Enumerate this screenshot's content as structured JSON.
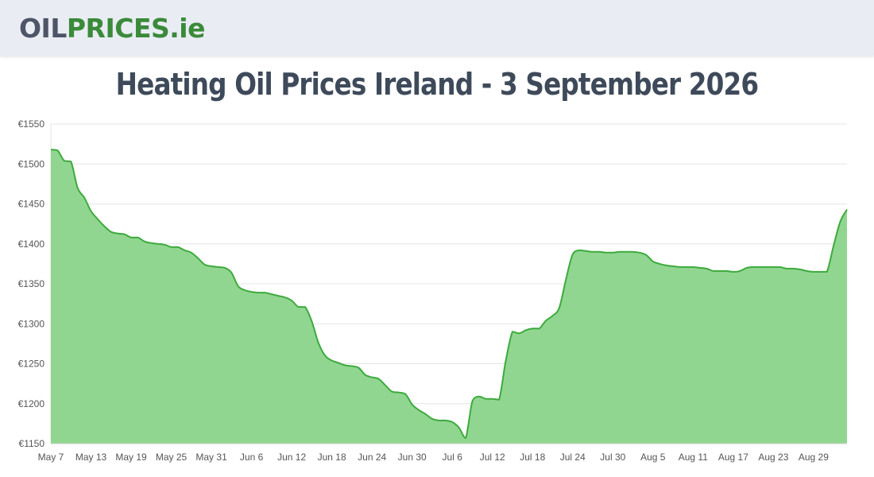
{
  "header": {
    "logo_part1": "OIL",
    "logo_part2": "PRICES",
    "logo_part3": ".ie",
    "logo_colors": {
      "dark": "#4d5566",
      "green": "#3a8a3a"
    }
  },
  "chart_data": {
    "type": "area",
    "title": "Heating Oil Prices Ireland - 3 September 2026",
    "xlabel": "",
    "ylabel": "",
    "ylim": [
      1150,
      1550
    ],
    "yticks": [
      "€1150",
      "€1200",
      "€1250",
      "€1300",
      "€1350",
      "€1400",
      "€1450",
      "€1500",
      "€1550"
    ],
    "ytick_values": [
      1150,
      1200,
      1250,
      1300,
      1350,
      1400,
      1450,
      1500,
      1550
    ],
    "xticks": [
      "May 7",
      "May 13",
      "May 19",
      "May 25",
      "May 31",
      "Jun 6",
      "Jun 12",
      "Jun 18",
      "Jun 24",
      "Jun 30",
      "Jul 6",
      "Jul 12",
      "Jul 18",
      "Jul 24",
      "Jul 30",
      "Aug 5",
      "Aug 11",
      "Aug 17",
      "Aug 23",
      "Aug 29"
    ],
    "xlim": [
      "May 7",
      "Sep 3"
    ],
    "grid": true,
    "line_color": "#3daa3d",
    "fill_color": "#90d690",
    "series": [
      {
        "values": [
          {
            "x": "May 7",
            "y": 1518
          },
          {
            "x": "May 8",
            "y": 1517
          },
          {
            "x": "May 9",
            "y": 1504
          },
          {
            "x": "May 10",
            "y": 1503
          },
          {
            "x": "May 11",
            "y": 1470
          },
          {
            "x": "May 12",
            "y": 1458
          },
          {
            "x": "May 13",
            "y": 1441
          },
          {
            "x": "May 14",
            "y": 1431
          },
          {
            "x": "May 15",
            "y": 1422
          },
          {
            "x": "May 16",
            "y": 1415
          },
          {
            "x": "May 17",
            "y": 1413
          },
          {
            "x": "May 18",
            "y": 1412
          },
          {
            "x": "May 19",
            "y": 1408
          },
          {
            "x": "May 20",
            "y": 1408
          },
          {
            "x": "May 21",
            "y": 1403
          },
          {
            "x": "May 22",
            "y": 1401
          },
          {
            "x": "May 23",
            "y": 1400
          },
          {
            "x": "May 24",
            "y": 1399
          },
          {
            "x": "May 25",
            "y": 1396
          },
          {
            "x": "May 26",
            "y": 1396
          },
          {
            "x": "May 27",
            "y": 1392
          },
          {
            "x": "May 28",
            "y": 1389
          },
          {
            "x": "May 29",
            "y": 1382
          },
          {
            "x": "May 30",
            "y": 1374
          },
          {
            "x": "May 31",
            "y": 1372
          },
          {
            "x": "Jun 1",
            "y": 1371
          },
          {
            "x": "Jun 2",
            "y": 1370
          },
          {
            "x": "Jun 3",
            "y": 1364
          },
          {
            "x": "Jun 4",
            "y": 1347
          },
          {
            "x": "Jun 5",
            "y": 1342
          },
          {
            "x": "Jun 6",
            "y": 1340
          },
          {
            "x": "Jun 7",
            "y": 1339
          },
          {
            "x": "Jun 8",
            "y": 1339
          },
          {
            "x": "Jun 9",
            "y": 1337
          },
          {
            "x": "Jun 10",
            "y": 1335
          },
          {
            "x": "Jun 11",
            "y": 1333
          },
          {
            "x": "Jun 12",
            "y": 1329
          },
          {
            "x": "Jun 13",
            "y": 1321
          },
          {
            "x": "Jun 14",
            "y": 1321
          },
          {
            "x": "Jun 15",
            "y": 1303
          },
          {
            "x": "Jun 16",
            "y": 1276
          },
          {
            "x": "Jun 17",
            "y": 1260
          },
          {
            "x": "Jun 18",
            "y": 1254
          },
          {
            "x": "Jun 19",
            "y": 1251
          },
          {
            "x": "Jun 20",
            "y": 1248
          },
          {
            "x": "Jun 21",
            "y": 1247
          },
          {
            "x": "Jun 22",
            "y": 1245
          },
          {
            "x": "Jun 23",
            "y": 1236
          },
          {
            "x": "Jun 24",
            "y": 1233
          },
          {
            "x": "Jun 25",
            "y": 1231
          },
          {
            "x": "Jun 26",
            "y": 1223
          },
          {
            "x": "Jun 27",
            "y": 1215
          },
          {
            "x": "Jun 28",
            "y": 1214
          },
          {
            "x": "Jun 29",
            "y": 1212
          },
          {
            "x": "Jun 30",
            "y": 1199
          },
          {
            "x": "Jul 1",
            "y": 1192
          },
          {
            "x": "Jul 2",
            "y": 1187
          },
          {
            "x": "Jul 3",
            "y": 1181
          },
          {
            "x": "Jul 4",
            "y": 1179
          },
          {
            "x": "Jul 5",
            "y": 1179
          },
          {
            "x": "Jul 6",
            "y": 1177
          },
          {
            "x": "Jul 7",
            "y": 1170
          },
          {
            "x": "Jul 8",
            "y": 1157
          },
          {
            "x": "Jul 9",
            "y": 1203
          },
          {
            "x": "Jul 10",
            "y": 1209
          },
          {
            "x": "Jul 11",
            "y": 1206
          },
          {
            "x": "Jul 12",
            "y": 1206
          },
          {
            "x": "Jul 13",
            "y": 1205
          },
          {
            "x": "Jul 14",
            "y": 1254
          },
          {
            "x": "Jul 15",
            "y": 1290
          },
          {
            "x": "Jul 16",
            "y": 1288
          },
          {
            "x": "Jul 17",
            "y": 1292
          },
          {
            "x": "Jul 18",
            "y": 1294
          },
          {
            "x": "Jul 19",
            "y": 1294
          },
          {
            "x": "Jul 20",
            "y": 1304
          },
          {
            "x": "Jul 21",
            "y": 1310
          },
          {
            "x": "Jul 22",
            "y": 1320
          },
          {
            "x": "Jul 23",
            "y": 1356
          },
          {
            "x": "Jul 24",
            "y": 1387
          },
          {
            "x": "Jul 25",
            "y": 1392
          },
          {
            "x": "Jul 26",
            "y": 1391
          },
          {
            "x": "Jul 27",
            "y": 1390
          },
          {
            "x": "Jul 28",
            "y": 1390
          },
          {
            "x": "Jul 29",
            "y": 1389
          },
          {
            "x": "Jul 30",
            "y": 1389
          },
          {
            "x": "Jul 31",
            "y": 1390
          },
          {
            "x": "Aug 1",
            "y": 1390
          },
          {
            "x": "Aug 2",
            "y": 1390
          },
          {
            "x": "Aug 3",
            "y": 1389
          },
          {
            "x": "Aug 4",
            "y": 1386
          },
          {
            "x": "Aug 5",
            "y": 1378
          },
          {
            "x": "Aug 6",
            "y": 1375
          },
          {
            "x": "Aug 7",
            "y": 1373
          },
          {
            "x": "Aug 8",
            "y": 1372
          },
          {
            "x": "Aug 9",
            "y": 1371
          },
          {
            "x": "Aug 10",
            "y": 1371
          },
          {
            "x": "Aug 11",
            "y": 1371
          },
          {
            "x": "Aug 12",
            "y": 1370
          },
          {
            "x": "Aug 13",
            "y": 1369
          },
          {
            "x": "Aug 14",
            "y": 1366
          },
          {
            "x": "Aug 15",
            "y": 1366
          },
          {
            "x": "Aug 16",
            "y": 1366
          },
          {
            "x": "Aug 17",
            "y": 1365
          },
          {
            "x": "Aug 18",
            "y": 1366
          },
          {
            "x": "Aug 19",
            "y": 1370
          },
          {
            "x": "Aug 20",
            "y": 1371
          },
          {
            "x": "Aug 21",
            "y": 1371
          },
          {
            "x": "Aug 22",
            "y": 1371
          },
          {
            "x": "Aug 23",
            "y": 1371
          },
          {
            "x": "Aug 24",
            "y": 1371
          },
          {
            "x": "Aug 25",
            "y": 1369
          },
          {
            "x": "Aug 26",
            "y": 1369
          },
          {
            "x": "Aug 27",
            "y": 1368
          },
          {
            "x": "Aug 28",
            "y": 1366
          },
          {
            "x": "Aug 29",
            "y": 1365
          },
          {
            "x": "Aug 30",
            "y": 1365
          },
          {
            "x": "Aug 31",
            "y": 1365
          },
          {
            "x": "Sep 1",
            "y": 1398
          },
          {
            "x": "Sep 2",
            "y": 1428
          },
          {
            "x": "Sep 3",
            "y": 1443
          }
        ]
      }
    ]
  }
}
